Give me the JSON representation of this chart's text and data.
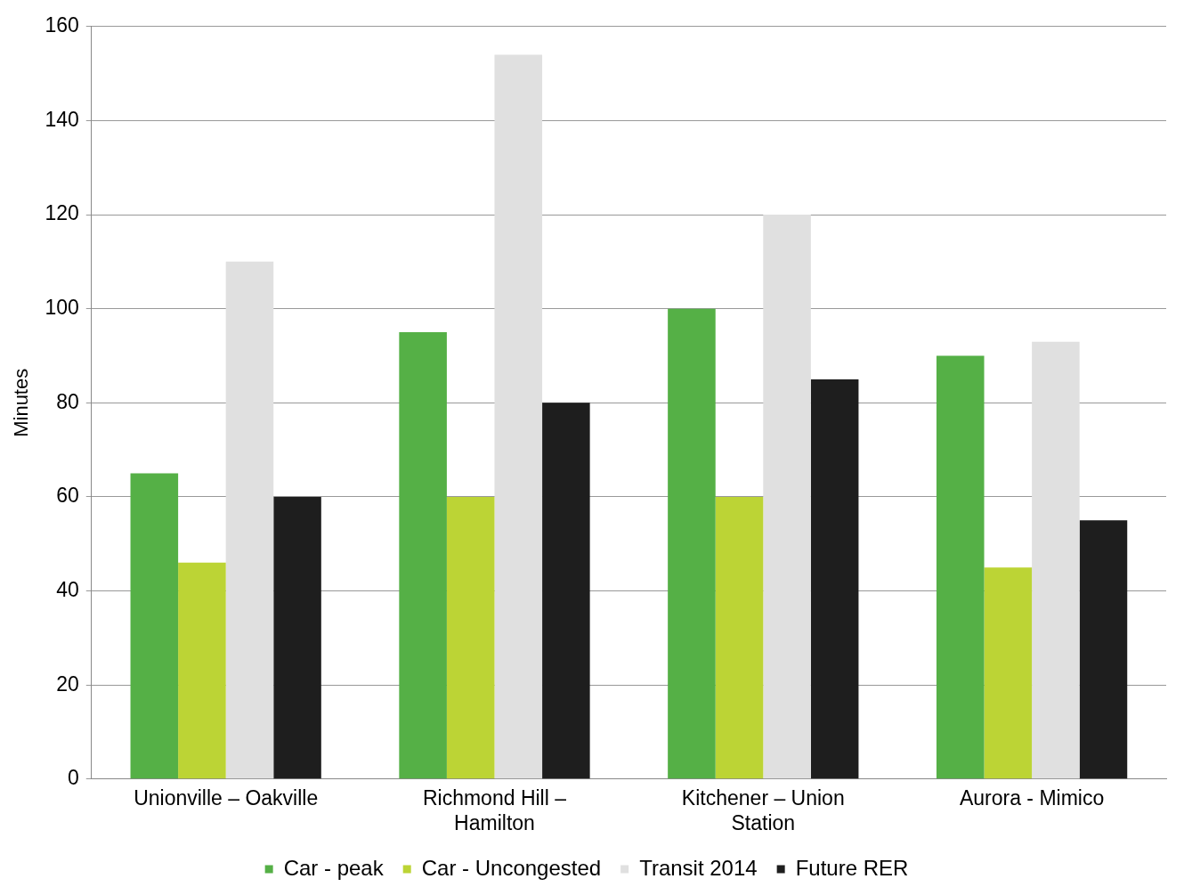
{
  "chart_data": {
    "type": "bar",
    "ylabel": "Minutes",
    "categories": [
      "Unionville – Oakville",
      "Richmond Hill – Hamilton",
      "Kitchener – Union Station",
      "Aurora - Mimico"
    ],
    "series": [
      {
        "name": "Car - peak",
        "color": "#55b046",
        "values": [
          65,
          95,
          100,
          90
        ]
      },
      {
        "name": "Car - Uncongested",
        "color": "#bcd435",
        "values": [
          46,
          60,
          60,
          45
        ]
      },
      {
        "name": "Transit 2014",
        "color": "#e0e0e0",
        "values": [
          110,
          154,
          120,
          93
        ]
      },
      {
        "name": "Future RER",
        "color": "#1e1e1e",
        "values": [
          60,
          80,
          85,
          55
        ]
      }
    ],
    "ylim": [
      0,
      160
    ],
    "yticks": [
      0,
      20,
      40,
      60,
      80,
      100,
      120,
      140,
      160
    ],
    "grid": "y",
    "legend": "bottom"
  }
}
